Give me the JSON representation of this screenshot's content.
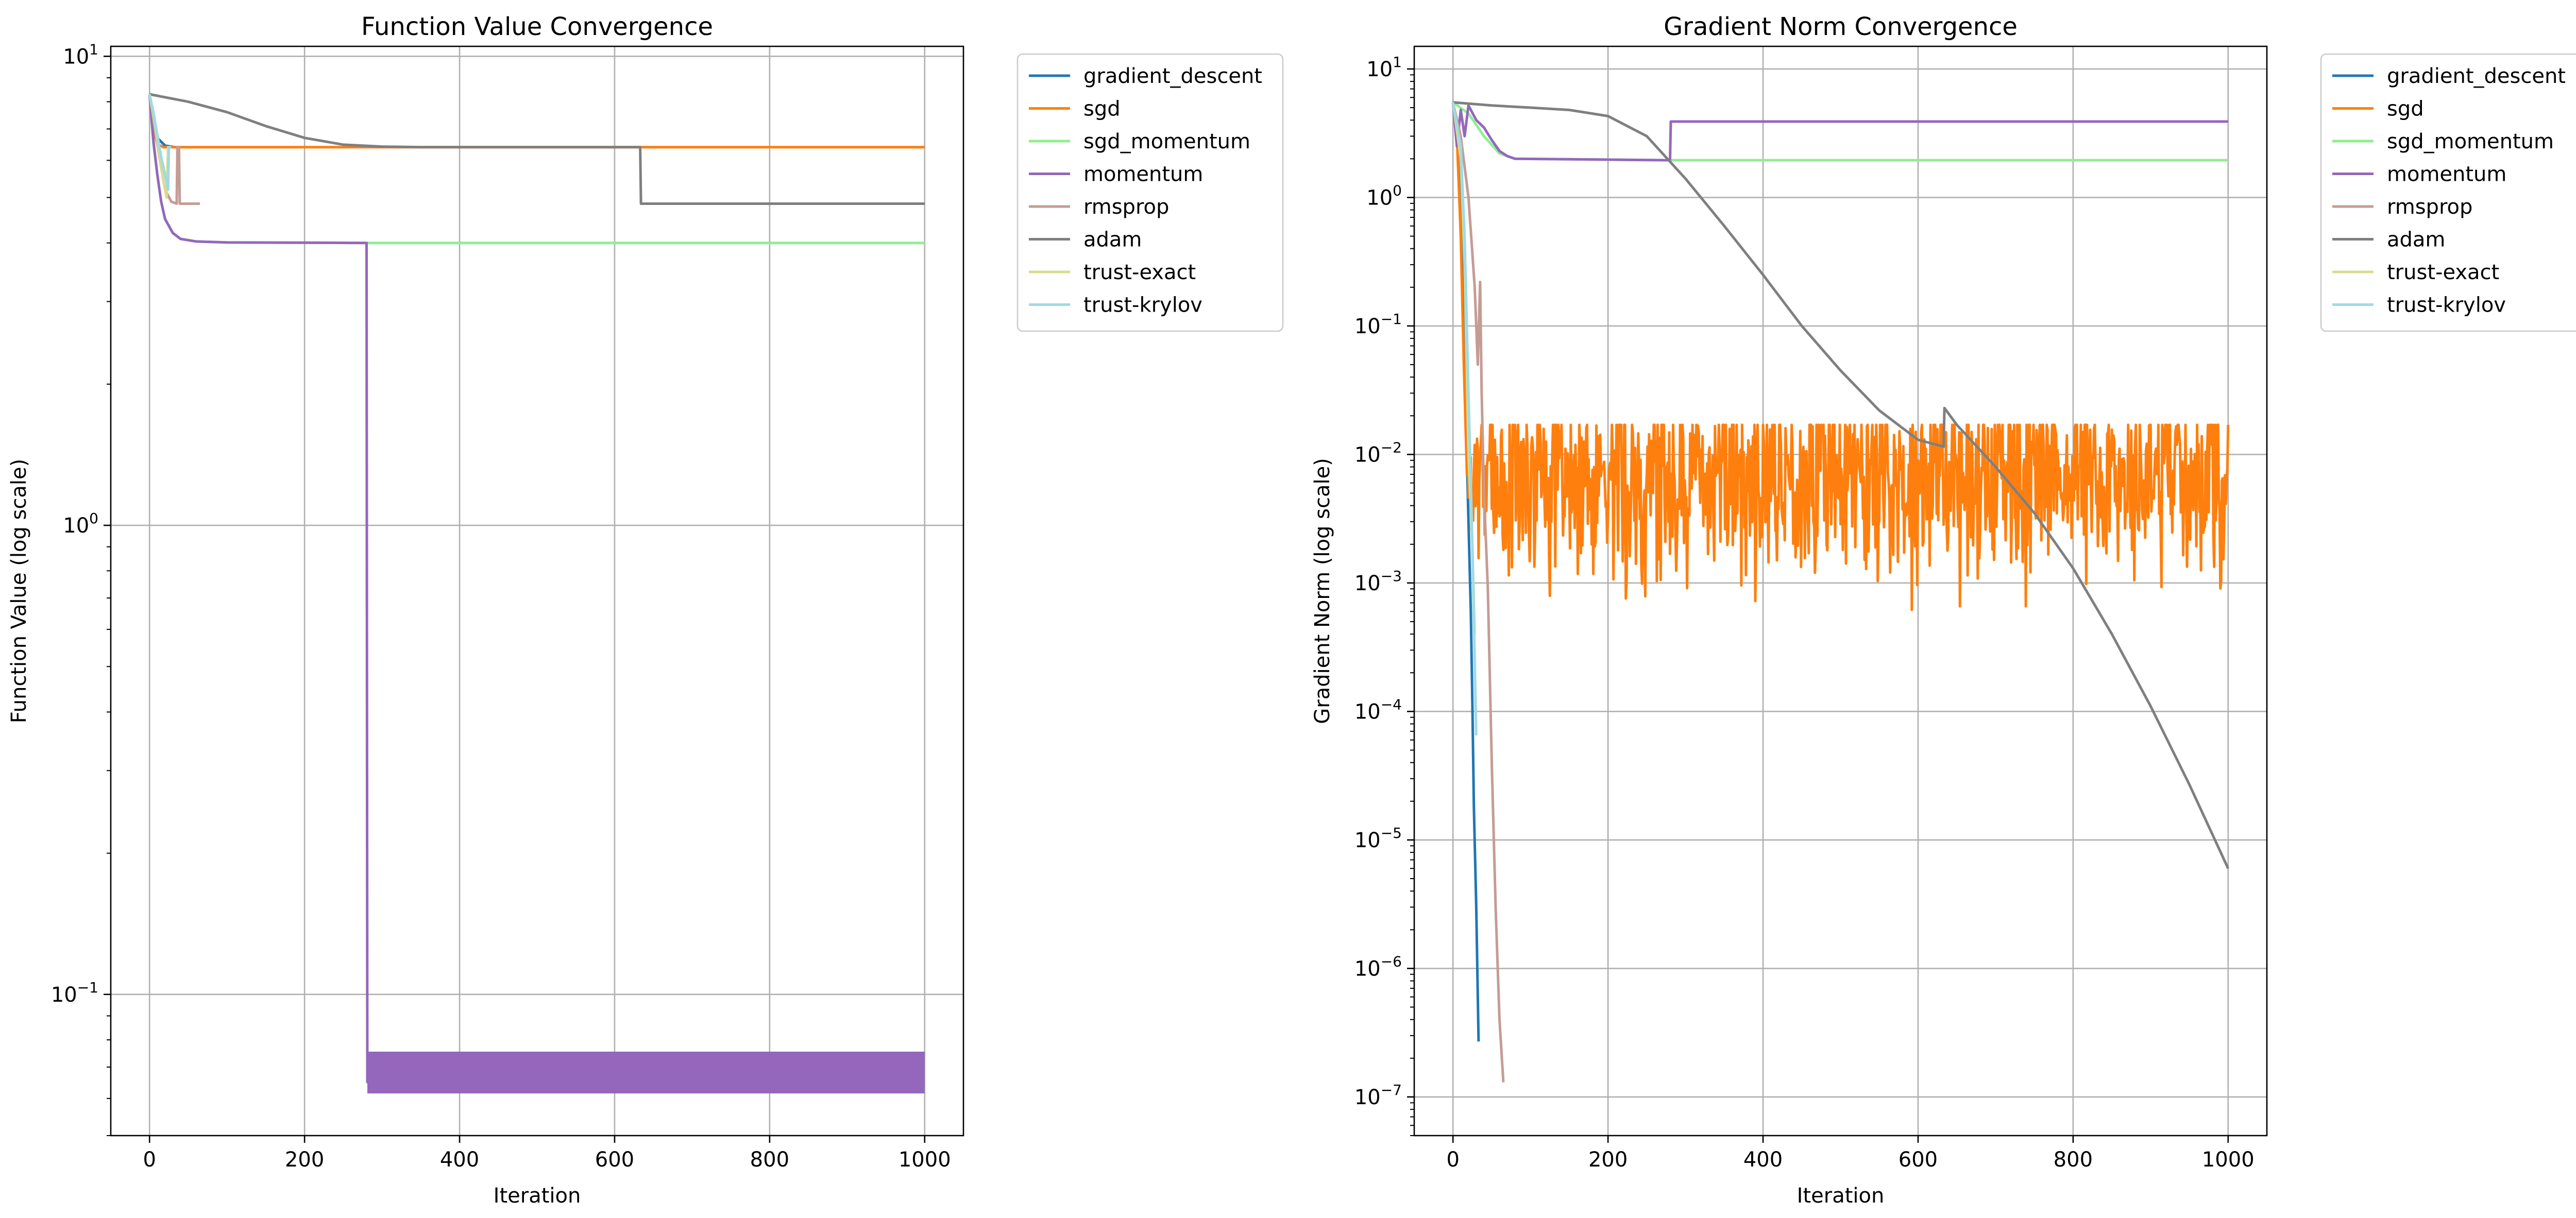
{
  "chart_data": [
    {
      "type": "line",
      "title": "Function Value Convergence",
      "xlabel": "Iteration",
      "ylabel": "Function Value (log scale)",
      "yscale": "log",
      "xlim": [
        -50,
        1050
      ],
      "ylim": [
        0.05,
        10.5
      ],
      "xticks": [
        {
          "v": 0,
          "label": "0"
        },
        {
          "v": 200,
          "label": "200"
        },
        {
          "v": 400,
          "label": "400"
        },
        {
          "v": 600,
          "label": "600"
        },
        {
          "v": 800,
          "label": "800"
        },
        {
          "v": 1000,
          "label": "1000"
        }
      ],
      "yticks": [
        {
          "v": 0.1,
          "base": "10",
          "exp": "−1"
        },
        {
          "v": 1,
          "base": "10",
          "exp": "0"
        },
        {
          "v": 10,
          "base": "10",
          "exp": "1"
        }
      ],
      "grid": true,
      "legend_position": "outside-upper-right",
      "series": [
        {
          "name": "gradient_descent",
          "color": "#1f77b4",
          "points": [
            [
              0,
              8.3
            ],
            [
              5,
              7.2
            ],
            [
              10,
              6.7
            ],
            [
              20,
              6.45
            ],
            [
              33,
              6.4
            ]
          ]
        },
        {
          "name": "sgd",
          "color": "#ff7f0e",
          "points": [
            [
              0,
              8.3
            ],
            [
              5,
              7.0
            ],
            [
              10,
              6.5
            ],
            [
              18,
              6.4
            ],
            [
              1000,
              6.4
            ]
          ]
        },
        {
          "name": "sgd_momentum",
          "color": "#90ee90",
          "points": [
            [
              0,
              8.3
            ],
            [
              5,
              6.5
            ],
            [
              10,
              5.6
            ],
            [
              15,
              4.9
            ],
            [
              20,
              4.5
            ],
            [
              30,
              4.2
            ],
            [
              40,
              4.08
            ],
            [
              60,
              4.03
            ],
            [
              100,
              4.01
            ],
            [
              280,
              4.0
            ],
            [
              1000,
              4.0
            ]
          ]
        },
        {
          "name": "momentum",
          "color": "#9467bd",
          "points": [
            [
              0,
              8.3
            ],
            [
              5,
              6.6
            ],
            [
              10,
              5.6
            ],
            [
              15,
              4.9
            ],
            [
              20,
              4.5
            ],
            [
              30,
              4.2
            ],
            [
              40,
              4.08
            ],
            [
              60,
              4.03
            ],
            [
              100,
              4.01
            ],
            [
              280,
              4.0
            ],
            [
              281,
              0.065
            ],
            [
              1000,
              0.065
            ]
          ],
          "band": {
            "x0": 281,
            "x1": 1000,
            "low": 0.0615,
            "high": 0.0755
          }
        },
        {
          "name": "rmsprop",
          "color": "#c49c94",
          "points": [
            [
              0,
              8.3
            ],
            [
              8,
              6.8
            ],
            [
              15,
              5.8
            ],
            [
              20,
              5.2
            ],
            [
              28,
              4.9
            ],
            [
              35,
              4.85
            ],
            [
              36,
              6.4
            ],
            [
              38,
              6.4
            ],
            [
              39,
              4.85
            ],
            [
              65,
              4.85
            ]
          ]
        },
        {
          "name": "adam",
          "color": "#7f7f7f",
          "points": [
            [
              0,
              8.3
            ],
            [
              50,
              8.0
            ],
            [
              100,
              7.6
            ],
            [
              150,
              7.1
            ],
            [
              200,
              6.7
            ],
            [
              250,
              6.48
            ],
            [
              300,
              6.42
            ],
            [
              350,
              6.4
            ],
            [
              400,
              6.4
            ],
            [
              633,
              6.4
            ],
            [
              634,
              4.85
            ],
            [
              1000,
              4.85
            ]
          ]
        },
        {
          "name": "trust-exact",
          "color": "#dbdb8d",
          "points": [
            [
              0,
              8.3
            ],
            [
              5,
              7.5
            ],
            [
              10,
              6.6
            ],
            [
              15,
              5.8
            ],
            [
              20,
              5.2
            ],
            [
              22,
              5.0
            ],
            [
              24,
              6.4
            ],
            [
              27,
              6.4
            ]
          ]
        },
        {
          "name": "trust-krylov",
          "color": "#9edae5",
          "points": [
            [
              0,
              8.3
            ],
            [
              5,
              7.6
            ],
            [
              10,
              6.8
            ],
            [
              15,
              6.1
            ],
            [
              20,
              5.6
            ],
            [
              24,
              5.2
            ],
            [
              25,
              6.4
            ],
            [
              28,
              6.4
            ]
          ]
        }
      ]
    },
    {
      "type": "line",
      "title": "Gradient Norm Convergence",
      "xlabel": "Iteration",
      "ylabel": "Gradient Norm (log scale)",
      "yscale": "log",
      "xlim": [
        -50,
        1050
      ],
      "ylim": [
        5e-08,
        15
      ],
      "xticks": [
        {
          "v": 0,
          "label": "0"
        },
        {
          "v": 200,
          "label": "200"
        },
        {
          "v": 400,
          "label": "400"
        },
        {
          "v": 600,
          "label": "600"
        },
        {
          "v": 800,
          "label": "800"
        },
        {
          "v": 1000,
          "label": "1000"
        }
      ],
      "yticks": [
        {
          "v": 1e-07,
          "base": "10",
          "exp": "−7"
        },
        {
          "v": 1e-06,
          "base": "10",
          "exp": "−6"
        },
        {
          "v": 1e-05,
          "base": "10",
          "exp": "−5"
        },
        {
          "v": 0.0001,
          "base": "10",
          "exp": "−4"
        },
        {
          "v": 0.001,
          "base": "10",
          "exp": "−3"
        },
        {
          "v": 0.01,
          "base": "10",
          "exp": "−2"
        },
        {
          "v": 0.1,
          "base": "10",
          "exp": "−1"
        },
        {
          "v": 1,
          "base": "10",
          "exp": "0"
        },
        {
          "v": 10,
          "base": "10",
          "exp": "1"
        }
      ],
      "grid": true,
      "legend_position": "outside-upper-right",
      "series": [
        {
          "name": "gradient_descent",
          "color": "#1f77b4",
          "points": [
            [
              0,
              5.5
            ],
            [
              5,
              3.0
            ],
            [
              10,
              0.8
            ],
            [
              15,
              0.05
            ],
            [
              20,
              0.003
            ],
            [
              23,
              0.0006
            ],
            [
              25,
              0.00012
            ],
            [
              27,
              1.8e-05
            ],
            [
              30,
              3e-06
            ],
            [
              33,
              2.7e-07
            ]
          ]
        },
        {
          "name": "sgd",
          "color": "#ff7f0e",
          "noise": {
            "x0": 18,
            "x1": 1000,
            "center": 0.007,
            "spread": 0.55,
            "seed": 7
          },
          "points": [
            [
              0,
              5.5
            ],
            [
              5,
              3.0
            ],
            [
              10,
              0.5
            ],
            [
              14,
              0.05
            ],
            [
              18,
              0.007
            ]
          ]
        },
        {
          "name": "sgd_momentum",
          "color": "#90ee90",
          "points": [
            [
              0,
              5.5
            ],
            [
              20,
              4.5
            ],
            [
              40,
              3.0
            ],
            [
              60,
              2.2
            ],
            [
              80,
              2.0
            ],
            [
              280,
              1.95
            ],
            [
              1000,
              1.95
            ]
          ],
          "jitter": 0.03
        },
        {
          "name": "momentum",
          "color": "#9467bd",
          "points": [
            [
              0,
              5.5
            ],
            [
              5,
              2.5
            ],
            [
              10,
              4.8
            ],
            [
              15,
              3.0
            ],
            [
              20,
              5.2
            ],
            [
              30,
              4.0
            ],
            [
              40,
              3.5
            ],
            [
              50,
              2.8
            ],
            [
              60,
              2.3
            ],
            [
              70,
              2.1
            ],
            [
              80,
              2.0
            ],
            [
              280,
              1.95
            ],
            [
              281,
              3.9
            ],
            [
              1000,
              3.9
            ]
          ]
        },
        {
          "name": "rmsprop",
          "color": "#c49c94",
          "points": [
            [
              0,
              5.5
            ],
            [
              10,
              3.0
            ],
            [
              20,
              1.0
            ],
            [
              28,
              0.2
            ],
            [
              32,
              0.05
            ],
            [
              35,
              0.22
            ],
            [
              37,
              0.03
            ],
            [
              40,
              0.005
            ],
            [
              45,
              0.0009
            ],
            [
              50,
              4e-05
            ],
            [
              55,
              3e-06
            ],
            [
              60,
              4e-07
            ],
            [
              65,
              1.3e-07
            ]
          ]
        },
        {
          "name": "adam",
          "color": "#7f7f7f",
          "points": [
            [
              0,
              5.5
            ],
            [
              50,
              5.2
            ],
            [
              100,
              5.0
            ],
            [
              150,
              4.8
            ],
            [
              200,
              4.3
            ],
            [
              250,
              3.0
            ],
            [
              300,
              1.4
            ],
            [
              350,
              0.6
            ],
            [
              400,
              0.25
            ],
            [
              450,
              0.1
            ],
            [
              500,
              0.045
            ],
            [
              550,
              0.022
            ],
            [
              600,
              0.013
            ],
            [
              633,
              0.0115
            ],
            [
              634,
              0.023
            ],
            [
              650,
              0.017
            ],
            [
              700,
              0.008
            ],
            [
              750,
              0.0035
            ],
            [
              800,
              0.0013
            ],
            [
              850,
              0.0004
            ],
            [
              900,
              0.00011
            ],
            [
              950,
              2.7e-05
            ],
            [
              1000,
              6e-06
            ]
          ]
        },
        {
          "name": "trust-exact",
          "color": "#dbdb8d",
          "points": [
            [
              0,
              5.5
            ],
            [
              10,
              2.0
            ],
            [
              15,
              0.3
            ],
            [
              20,
              0.01
            ],
            [
              25,
              0.002
            ],
            [
              28,
              0.0004
            ]
          ]
        },
        {
          "name": "trust-krylov",
          "color": "#9edae5",
          "points": [
            [
              0,
              5.5
            ],
            [
              10,
              2.5
            ],
            [
              15,
              0.5
            ],
            [
              20,
              0.03
            ],
            [
              25,
              0.002
            ],
            [
              30,
              6.5e-05
            ]
          ]
        }
      ]
    }
  ]
}
